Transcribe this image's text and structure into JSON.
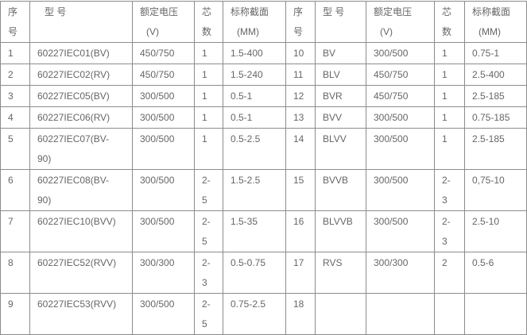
{
  "header": {
    "left": {
      "no": "序号",
      "model": "型 号",
      "voltage": "额定电压",
      "voltage_unit": "(V)",
      "cores": "芯数",
      "section": "标称截面",
      "section_unit": "(MM)"
    },
    "right": {
      "no": "序号",
      "model": "型 号",
      "voltage": "额定电压",
      "voltage_unit": "(V)",
      "cores": "芯数",
      "section": "标称截面",
      "section_unit": "(MM)"
    }
  },
  "rows": [
    {
      "no1": "1",
      "model1": "60227IEC01(BV)",
      "v1": "450/750",
      "c1": "1",
      "s1": "1.5-400",
      "no2": "10",
      "model2": "BV",
      "v2": "300/500",
      "c2": "1",
      "s2": "0.75-1"
    },
    {
      "no1": "2",
      "model1": "60227IEC02(RV)",
      "v1": "450/750",
      "c1": "1",
      "s1": "1.5-240",
      "no2": "11",
      "model2": "BLV",
      "v2": "450/750",
      "c2": "1",
      "s2": "2.5-400"
    },
    {
      "no1": "3",
      "model1": "60227IEC05(BV)",
      "v1": "300/500",
      "c1": "1",
      "s1": "0.5-1",
      "no2": "12",
      "model2": "BVR",
      "v2": "450/750",
      "c2": "1",
      "s2": "2.5-185"
    },
    {
      "no1": "4",
      "model1": "60227IEC06(RV)",
      "v1": "300/500",
      "c1": "1",
      "s1": "0.5-1",
      "no2": "13",
      "model2": "BVV",
      "v2": "300/500",
      "c2": "1",
      "s2": "0.75-185"
    },
    {
      "no1": "5",
      "model1": "60227IEC07(BV-90)",
      "v1": "300/500",
      "c1": "1",
      "s1": "0.5-2.5",
      "no2": "14",
      "model2": "BLVV",
      "v2": "300/500",
      "c2": "1",
      "s2": "2.5-185"
    },
    {
      "no1": "6",
      "model1": "60227IEC08(BV-90)",
      "v1": "300/500",
      "c1": "2-5",
      "s1": "1.5-2.5",
      "no2": "15",
      "model2": "BVVB",
      "v2": "300/500",
      "c2": "2-3",
      "s2": "0,75-10"
    },
    {
      "no1": "7",
      "model1": "60227IEC10(BVV)",
      "v1": "300/500",
      "c1": "2-5",
      "s1": "1.5-35",
      "no2": "16",
      "model2": "BLVVB",
      "v2": "300/500",
      "c2": "2-3",
      "s2": "2.5-10"
    },
    {
      "no1": "8",
      "model1": "60227IEC52(RVV)",
      "v1": "300/300",
      "c1": "2-3",
      "s1": "0.5-0.75",
      "no2": "17",
      "model2": "RVS",
      "v2": "300/300",
      "c2": "2",
      "s2": "0.5-6"
    },
    {
      "no1": "9",
      "model1": "60227IEC53(RVV)",
      "v1": "300/500",
      "c1": "2-5",
      "s1": "0.75-2.5",
      "no2": "18",
      "model2": "",
      "v2": "",
      "c2": "",
      "s2": ""
    }
  ]
}
